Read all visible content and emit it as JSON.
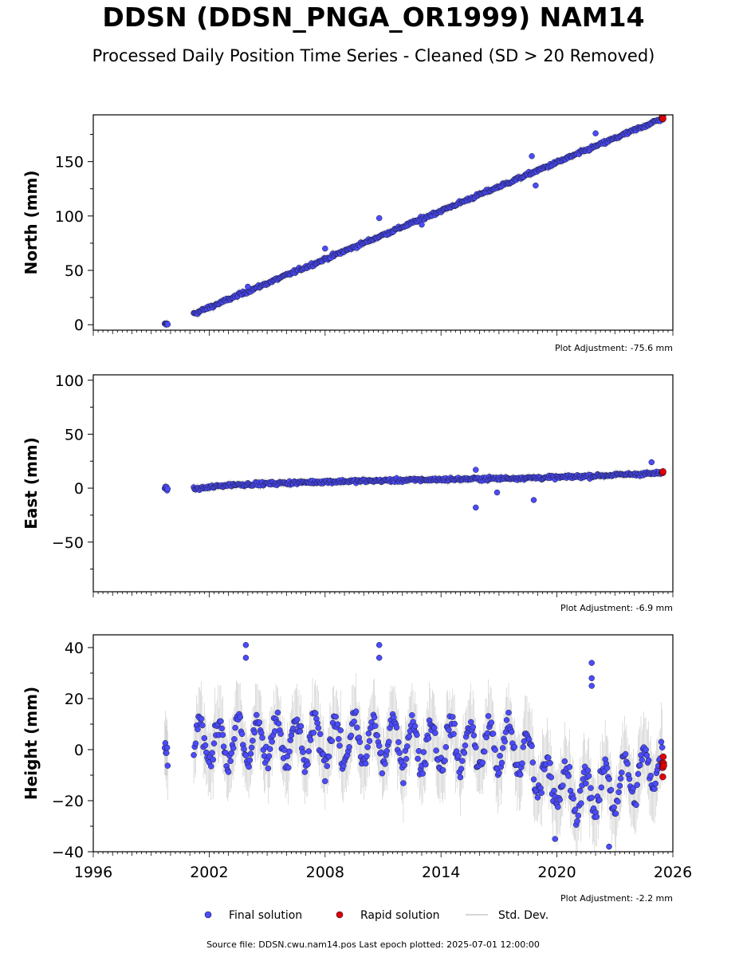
{
  "header": {
    "title": "DDSN (DDSN_PNGA_OR1999) NAM14",
    "subtitle": "Processed Daily Position Time Series - Cleaned (SD > 20 Removed)"
  },
  "footer": {
    "source": "Source file: DDSN.cwu.nam14.pos  Last epoch plotted: 2025-07-01 12:00:00"
  },
  "colors": {
    "final": "#4b4bff",
    "rapid": "#e00000",
    "stddev": "#b0b0b0",
    "marker_edge": "#1a1a2e"
  },
  "chart_data": [
    {
      "type": "scatter",
      "panel": "north",
      "ylabel": "North (mm)",
      "ylim": [
        -5,
        193
      ],
      "yticks": [
        0,
        50,
        100,
        150
      ],
      "xlim": [
        1996,
        2026
      ],
      "adjustment": "Plot Adjustment: -75.6 mm",
      "trend": [
        [
          1999.7,
          0
        ],
        [
          2001.2,
          10
        ],
        [
          2025.5,
          190
        ]
      ],
      "noise": 2,
      "outliers": [
        [
          2004.0,
          35
        ],
        [
          2008.0,
          70
        ],
        [
          2010.8,
          98
        ],
        [
          2013.0,
          92
        ],
        [
          2018.7,
          155
        ],
        [
          2018.9,
          128
        ],
        [
          2022.0,
          176
        ]
      ]
    },
    {
      "type": "scatter",
      "panel": "east",
      "ylabel": "East (mm)",
      "ylim": [
        -96,
        105
      ],
      "yticks": [
        -50,
        0,
        50,
        100
      ],
      "xlim": [
        1996,
        2026
      ],
      "adjustment": "Plot Adjustment: -6.9 mm",
      "trend": [
        [
          1999.7,
          0
        ],
        [
          2001.2,
          -1
        ],
        [
          2003.0,
          3
        ],
        [
          2008.0,
          6
        ],
        [
          2014.0,
          8
        ],
        [
          2020.0,
          10
        ],
        [
          2025.5,
          14
        ]
      ],
      "noise": 2,
      "outliers": [
        [
          2015.8,
          17
        ],
        [
          2015.8,
          -18
        ],
        [
          2016.9,
          -4
        ],
        [
          2018.8,
          -11
        ],
        [
          2024.9,
          24
        ]
      ]
    },
    {
      "type": "scatter",
      "panel": "height",
      "ylabel": "Height (mm)",
      "ylim": [
        -40,
        45
      ],
      "yticks": [
        -40,
        -20,
        0,
        20,
        40
      ],
      "xlim": [
        1996,
        2026
      ],
      "xticks": [
        1996,
        2002,
        2008,
        2014,
        2020,
        2026
      ],
      "adjustment": "Plot Adjustment: -2.2 mm",
      "trend": [
        [
          1999.7,
          0
        ],
        [
          2001.2,
          3
        ],
        [
          2010.0,
          3
        ],
        [
          2018.0,
          1
        ],
        [
          2019.5,
          -12
        ],
        [
          2021.0,
          -18
        ],
        [
          2023.0,
          -14
        ],
        [
          2025.5,
          -5
        ]
      ],
      "noise": 6,
      "seasonal_amplitude": 9,
      "outliers": [
        [
          2003.9,
          41
        ],
        [
          2003.9,
          36
        ],
        [
          2010.8,
          41
        ],
        [
          2010.8,
          36
        ],
        [
          2021.8,
          34
        ],
        [
          2021.8,
          28
        ],
        [
          2021.8,
          25
        ],
        [
          2022.7,
          -38
        ],
        [
          2019.9,
          -35
        ]
      ]
    }
  ],
  "legend": {
    "final_label": "Final solution",
    "rapid_label": "Rapid solution",
    "stddev_label": "Std. Dev."
  }
}
